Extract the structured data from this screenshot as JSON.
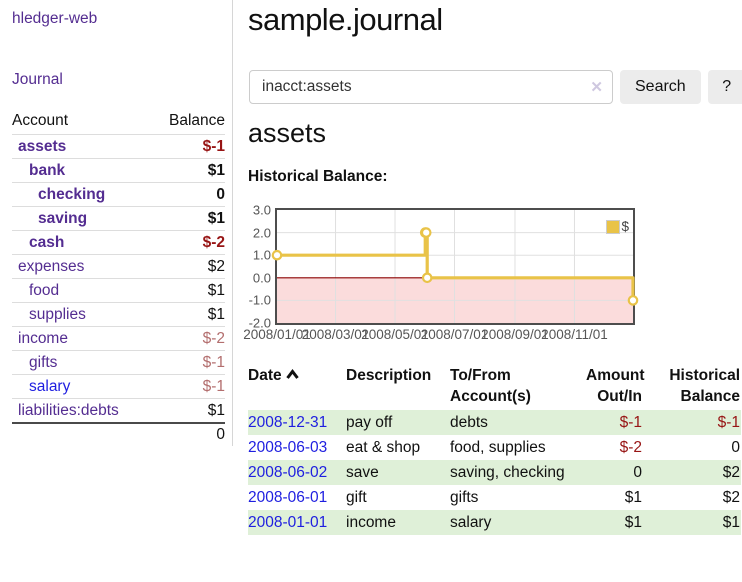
{
  "colors": {
    "link_purple": "#542d91",
    "link_blue": "#1e1ee0",
    "negative": "#971414",
    "negative_muted": "#b36e6e",
    "stripe_green": "#dff0d8",
    "chart_gold": "#e9c348"
  },
  "app": {
    "brand": "hledger-web",
    "nav_journal": "Journal"
  },
  "sidebar": {
    "header": {
      "account": "Account",
      "balance": "Balance"
    },
    "accounts": [
      {
        "name": "assets",
        "balance": "$-1",
        "depth": 1,
        "bold": true,
        "link": "purple",
        "amount_class": "neg"
      },
      {
        "name": "bank",
        "balance": "$1",
        "depth": 2,
        "bold": true,
        "link": "purple",
        "amount_class": ""
      },
      {
        "name": "checking",
        "balance": "0",
        "depth": 3,
        "bold": true,
        "link": "purple",
        "amount_class": ""
      },
      {
        "name": "saving",
        "balance": "$1",
        "depth": 3,
        "bold": true,
        "link": "purple",
        "amount_class": ""
      },
      {
        "name": "cash",
        "balance": "$-2",
        "depth": 2,
        "bold": true,
        "link": "purple",
        "amount_class": "neg"
      },
      {
        "name": "expenses",
        "balance": "$2",
        "depth": 1,
        "bold": false,
        "link": "purple",
        "amount_class": ""
      },
      {
        "name": "food",
        "balance": "$1",
        "depth": 2,
        "bold": false,
        "link": "purple",
        "amount_class": ""
      },
      {
        "name": "supplies",
        "balance": "$1",
        "depth": 2,
        "bold": false,
        "link": "purple",
        "amount_class": ""
      },
      {
        "name": "income",
        "balance": "$-2",
        "depth": 1,
        "bold": false,
        "link": "purple",
        "amount_class": "negm"
      },
      {
        "name": "gifts",
        "balance": "$-1",
        "depth": 2,
        "bold": false,
        "link": "purple",
        "amount_class": "negm"
      },
      {
        "name": "salary",
        "balance": "$-1",
        "depth": 2,
        "bold": false,
        "link": "blue",
        "amount_class": "negm"
      },
      {
        "name": "liabilities:debts",
        "balance": "$1",
        "depth": 1,
        "bold": false,
        "link": "purple",
        "amount_class": ""
      }
    ],
    "total": "0"
  },
  "main": {
    "title": "sample.journal",
    "search": {
      "value": "inacct:assets",
      "clear_icon": "✕",
      "button_label": "Search",
      "help_label": "?"
    },
    "account_heading": "assets",
    "chart_label": "Historical Balance:"
  },
  "chart_data": {
    "type": "line",
    "title": "Historical Balance",
    "step": true,
    "x_range_days": [
      0,
      365
    ],
    "ylim": [
      -2,
      3
    ],
    "y_ticks": [
      3.0,
      2.0,
      1.0,
      0.0,
      -1.0,
      -2.0
    ],
    "x_ticks": [
      {
        "day": 0,
        "label": "2008/01/01"
      },
      {
        "day": 60,
        "label": "2008/03/01"
      },
      {
        "day": 121,
        "label": "2008/05/01"
      },
      {
        "day": 182,
        "label": "2008/07/01"
      },
      {
        "day": 244,
        "label": "2008/09/01"
      },
      {
        "day": 305,
        "label": "2008/11/01"
      }
    ],
    "series": [
      {
        "name": "$",
        "color": "#e9c348",
        "points": [
          {
            "date": "2008-01-01",
            "day": 0,
            "value": 1
          },
          {
            "date": "2008-06-01",
            "day": 152,
            "value": 2
          },
          {
            "date": "2008-06-02",
            "day": 153,
            "value": 2
          },
          {
            "date": "2008-06-03",
            "day": 154,
            "value": 0
          },
          {
            "date": "2008-12-31",
            "day": 365,
            "value": -1
          }
        ]
      }
    ],
    "zero_line_color": "#8b0000",
    "negative_fill": "#fbdcdc",
    "grid_color": "#e0e0e0",
    "legend": {
      "label": "$",
      "position": "top-right"
    }
  },
  "register": {
    "headers": {
      "date": "Date",
      "description": "Description",
      "accounts": "To/From Account(s)",
      "amount": "Amount Out/In",
      "balance": "Historical Balance"
    },
    "rows": [
      {
        "date": "2008-12-31",
        "description": "pay off",
        "accounts": "debts",
        "amount": "$-1",
        "amount_class": "neg",
        "balance": "$-1",
        "balance_class": "neg"
      },
      {
        "date": "2008-06-03",
        "description": "eat & shop",
        "accounts": "food, supplies",
        "amount": "$-2",
        "amount_class": "neg",
        "balance": "0",
        "balance_class": ""
      },
      {
        "date": "2008-06-02",
        "description": "save",
        "accounts": "saving, checking",
        "amount": "0",
        "amount_class": "",
        "balance": "$2",
        "balance_class": ""
      },
      {
        "date": "2008-06-01",
        "description": "gift",
        "accounts": "gifts",
        "amount": "$1",
        "amount_class": "",
        "balance": "$2",
        "balance_class": ""
      },
      {
        "date": "2008-01-01",
        "description": "income",
        "accounts": "salary",
        "amount": "$1",
        "amount_class": "",
        "balance": "$1",
        "balance_class": ""
      }
    ]
  }
}
